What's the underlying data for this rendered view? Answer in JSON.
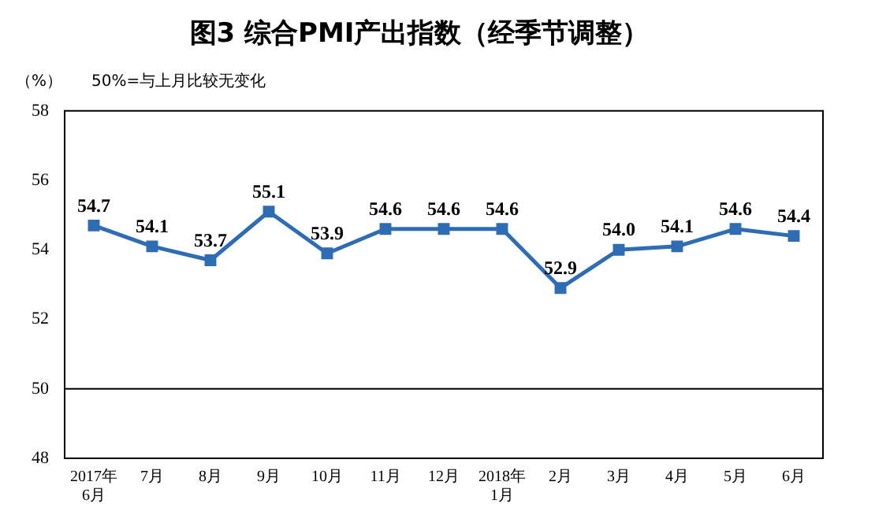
{
  "chart_data": {
    "type": "line",
    "title": "图3 综合PMI产出指数（经季节调整）",
    "ylabel": "（%）",
    "annotations": [
      "50%=与上月比较无变化"
    ],
    "categories": [
      "2017年\n6月",
      "7月",
      "8月",
      "9月",
      "10月",
      "11月",
      "12月",
      "2018年\n1月",
      "2月",
      "3月",
      "4月",
      "5月",
      "6月"
    ],
    "series": [
      {
        "color": "#2e6db4",
        "values": [
          54.7,
          54.1,
          53.7,
          55.1,
          53.9,
          54.6,
          54.6,
          54.6,
          52.9,
          54.0,
          54.1,
          54.6,
          54.4
        ],
        "value_labels": [
          "54.7",
          "54.1",
          "53.7",
          "55.1",
          "53.9",
          "54.6",
          "54.6",
          "54.6",
          "52.9",
          "54.0",
          "54.1",
          "54.6",
          "54.4"
        ]
      }
    ],
    "ylim": [
      48,
      58
    ],
    "yticks": [
      48,
      50,
      52,
      54,
      56,
      58
    ],
    "grid": false,
    "legend": false,
    "marker": "square",
    "line_style": "solid",
    "ref_lines": [
      {
        "axis": "y",
        "value": 50,
        "color": "#000000"
      }
    ]
  }
}
